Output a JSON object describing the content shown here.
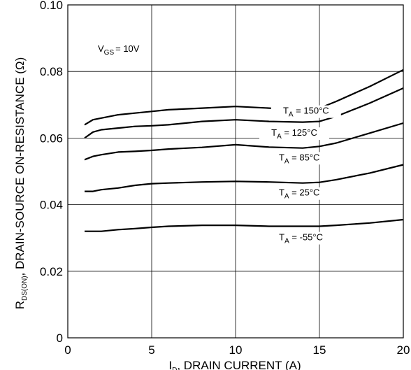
{
  "chart_data": {
    "type": "line",
    "xlabel_symbol": "I",
    "xlabel_symbol_sub": "D",
    "xlabel_text": ", DRAIN CURRENT (A)",
    "ylabel_symbol": "R",
    "ylabel_symbol_sub": "DS(ON)",
    "ylabel_text": ", DRAIN-SOURCE ON-RESISTANCE (Ω)",
    "xlim": [
      0,
      20
    ],
    "ylim": [
      0,
      0.1
    ],
    "x_ticks": [
      "0",
      "5",
      "10",
      "15",
      "20"
    ],
    "y_ticks": [
      "0",
      "0.02",
      "0.04",
      "0.06",
      "0.08",
      "0.10"
    ],
    "grid": true,
    "condition": {
      "symbol": "V",
      "sub": "GS",
      "text": "= 10V"
    },
    "series": [
      {
        "name": "T_A = 150°C",
        "label_symbol": "T",
        "label_sub": "A",
        "label_text": " = 150°C",
        "x": [
          1,
          1.5,
          2,
          3,
          4,
          5,
          6,
          8,
          10,
          12,
          14,
          15,
          16,
          18,
          20
        ],
        "y": [
          0.064,
          0.0655,
          0.066,
          0.067,
          0.0675,
          0.068,
          0.0685,
          0.069,
          0.0695,
          0.069,
          0.0685,
          0.069,
          0.071,
          0.0755,
          0.0805
        ]
      },
      {
        "name": "T_A = 125°C",
        "label_symbol": "T",
        "label_sub": "A",
        "label_text": " = 125°C",
        "x": [
          1,
          1.5,
          2,
          3,
          4,
          5,
          6,
          8,
          10,
          12,
          14,
          15,
          16,
          18,
          20
        ],
        "y": [
          0.06,
          0.0618,
          0.0625,
          0.063,
          0.0635,
          0.0637,
          0.064,
          0.065,
          0.0655,
          0.065,
          0.0648,
          0.065,
          0.0665,
          0.0705,
          0.075
        ]
      },
      {
        "name": "T_A = 85°C",
        "label_symbol": "T",
        "label_sub": "A",
        "label_text": " = 85°C",
        "x": [
          1,
          1.5,
          2,
          3,
          4,
          5,
          6,
          8,
          10,
          12,
          14,
          15,
          16,
          18,
          20
        ],
        "y": [
          0.0535,
          0.0545,
          0.055,
          0.0558,
          0.056,
          0.0563,
          0.0567,
          0.0572,
          0.058,
          0.0573,
          0.057,
          0.0575,
          0.0585,
          0.0615,
          0.0645
        ]
      },
      {
        "name": "T_A = 25°C",
        "label_symbol": "T",
        "label_sub": "A",
        "label_text": " = 25°C",
        "x": [
          1,
          1.5,
          2,
          3,
          4,
          5,
          6,
          8,
          10,
          12,
          14,
          15,
          16,
          18,
          20
        ],
        "y": [
          0.044,
          0.044,
          0.0445,
          0.045,
          0.0458,
          0.0463,
          0.0465,
          0.0468,
          0.047,
          0.0468,
          0.0465,
          0.0467,
          0.0475,
          0.0495,
          0.052
        ]
      },
      {
        "name": "T_A = -55°C",
        "label_symbol": "T",
        "label_sub": "A",
        "label_text": " = -55°C",
        "x": [
          1,
          2,
          3,
          4,
          5,
          6,
          8,
          10,
          12,
          14,
          15,
          16,
          18,
          20
        ],
        "y": [
          0.032,
          0.032,
          0.0325,
          0.0328,
          0.0332,
          0.0335,
          0.0338,
          0.0338,
          0.0335,
          0.0335,
          0.0335,
          0.0338,
          0.0345,
          0.0355
        ]
      }
    ]
  }
}
